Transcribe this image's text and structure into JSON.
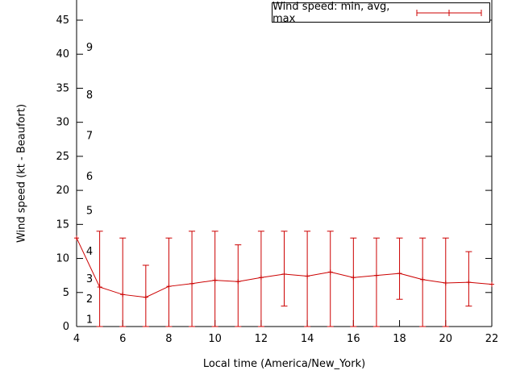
{
  "chart_data": {
    "type": "line",
    "subtype": "yerrorlines",
    "title": "",
    "legend": {
      "label": "Wind speed: min, avg, max",
      "position": "top-right",
      "boxed": true
    },
    "xlabel": "Local time (America/New_York)",
    "ylabel": "Wind speed (kt - Beaufort)",
    "xlim": [
      4,
      22
    ],
    "ylim": [
      0,
      45
    ],
    "x_ticks": [
      4,
      6,
      8,
      10,
      12,
      14,
      16,
      18,
      20,
      22
    ],
    "y_ticks": [
      0,
      5,
      10,
      15,
      20,
      25,
      30,
      35,
      40,
      45
    ],
    "beaufort_scale": [
      {
        "bf": "1",
        "kt": 1
      },
      {
        "bf": "2",
        "kt": 4
      },
      {
        "bf": "3",
        "kt": 7
      },
      {
        "bf": "4",
        "kt": 11
      },
      {
        "bf": "5",
        "kt": 17
      },
      {
        "bf": "6",
        "kt": 22
      },
      {
        "bf": "7",
        "kt": 28
      },
      {
        "bf": "8",
        "kt": 34
      },
      {
        "bf": "9",
        "kt": 41
      }
    ],
    "grid": false,
    "series_color": "#cc0000",
    "axis_color": "#000000",
    "series": {
      "x": [
        4,
        5,
        6,
        7,
        8,
        9,
        10,
        11,
        12,
        13,
        14,
        15,
        16,
        17,
        18,
        19,
        20,
        21,
        22
      ],
      "avg": [
        13,
        5.8,
        4.7,
        4.3,
        5.9,
        6.3,
        6.8,
        6.6,
        7.2,
        7.7,
        7.4,
        8,
        7.2,
        7.5,
        7.8,
        6.9,
        6.4,
        6.5,
        6.2
      ],
      "min": [
        null,
        0,
        0,
        0,
        0,
        0,
        0,
        0,
        0,
        3,
        0,
        0,
        0,
        0,
        4,
        0,
        0,
        3,
        null
      ],
      "max": [
        null,
        14,
        13,
        9,
        13,
        14,
        14,
        12,
        14,
        14,
        14,
        14,
        13,
        13,
        13,
        13,
        13,
        11,
        null
      ]
    }
  }
}
